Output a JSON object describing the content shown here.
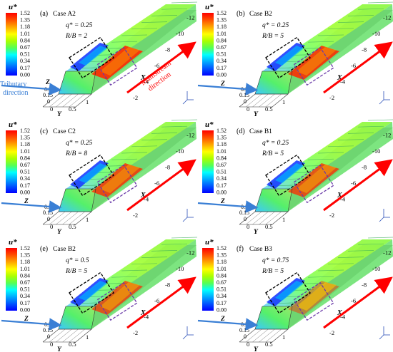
{
  "colorbar": {
    "title": "u*",
    "ticks": [
      "1.52",
      "1.35",
      "1.18",
      "1.01",
      "0.84",
      "0.67",
      "0.51",
      "0.34",
      "0.17",
      "0.00"
    ],
    "colors": [
      "#0000ff",
      "#0055ff",
      "#00aaff",
      "#00ffff",
      "#55ff55",
      "#aaff00",
      "#ffff00",
      "#ffaa00",
      "#ff5500",
      "#ff0000"
    ]
  },
  "axes": {
    "x_label": "X",
    "y_label": "Y",
    "z_label": "Z",
    "x_ticks": [
      "-2",
      "-4",
      "-6",
      "-8",
      "-10",
      "-12"
    ],
    "y_ticks": [
      "1",
      "0.5",
      "0"
    ],
    "z_ticks": [
      "0.3",
      "0.15",
      "0"
    ]
  },
  "annotations": {
    "tributary_direction": "Tributary\ndirection",
    "mainstream_direction": "Mainstream\ndirection"
  },
  "panels": [
    {
      "label": "(a)",
      "case": "Case A2",
      "q": "q* = 0.25",
      "rb": "R/B = 2",
      "intensity": 0.95
    },
    {
      "label": "(b)",
      "case": "Case B2",
      "q": "q* = 0.25",
      "rb": "R/B = 5",
      "intensity": 0.9
    },
    {
      "label": "(c)",
      "case": "Case C2",
      "q": "q* = 0.25",
      "rb": "R/B = 8",
      "intensity": 0.8
    },
    {
      "label": "(d)",
      "case": "Case B1",
      "q": "q* = 0.25",
      "rb": "R/B = 5",
      "intensity": 0.75
    },
    {
      "label": "(e)",
      "case": "Case B2",
      "q": "q* = 0.5",
      "rb": "R/B = 5",
      "intensity": 0.7
    },
    {
      "label": "(f)",
      "case": "Case B3",
      "q": "q* = 0.75",
      "rb": "R/B = 5",
      "intensity": 0.3
    }
  ]
}
